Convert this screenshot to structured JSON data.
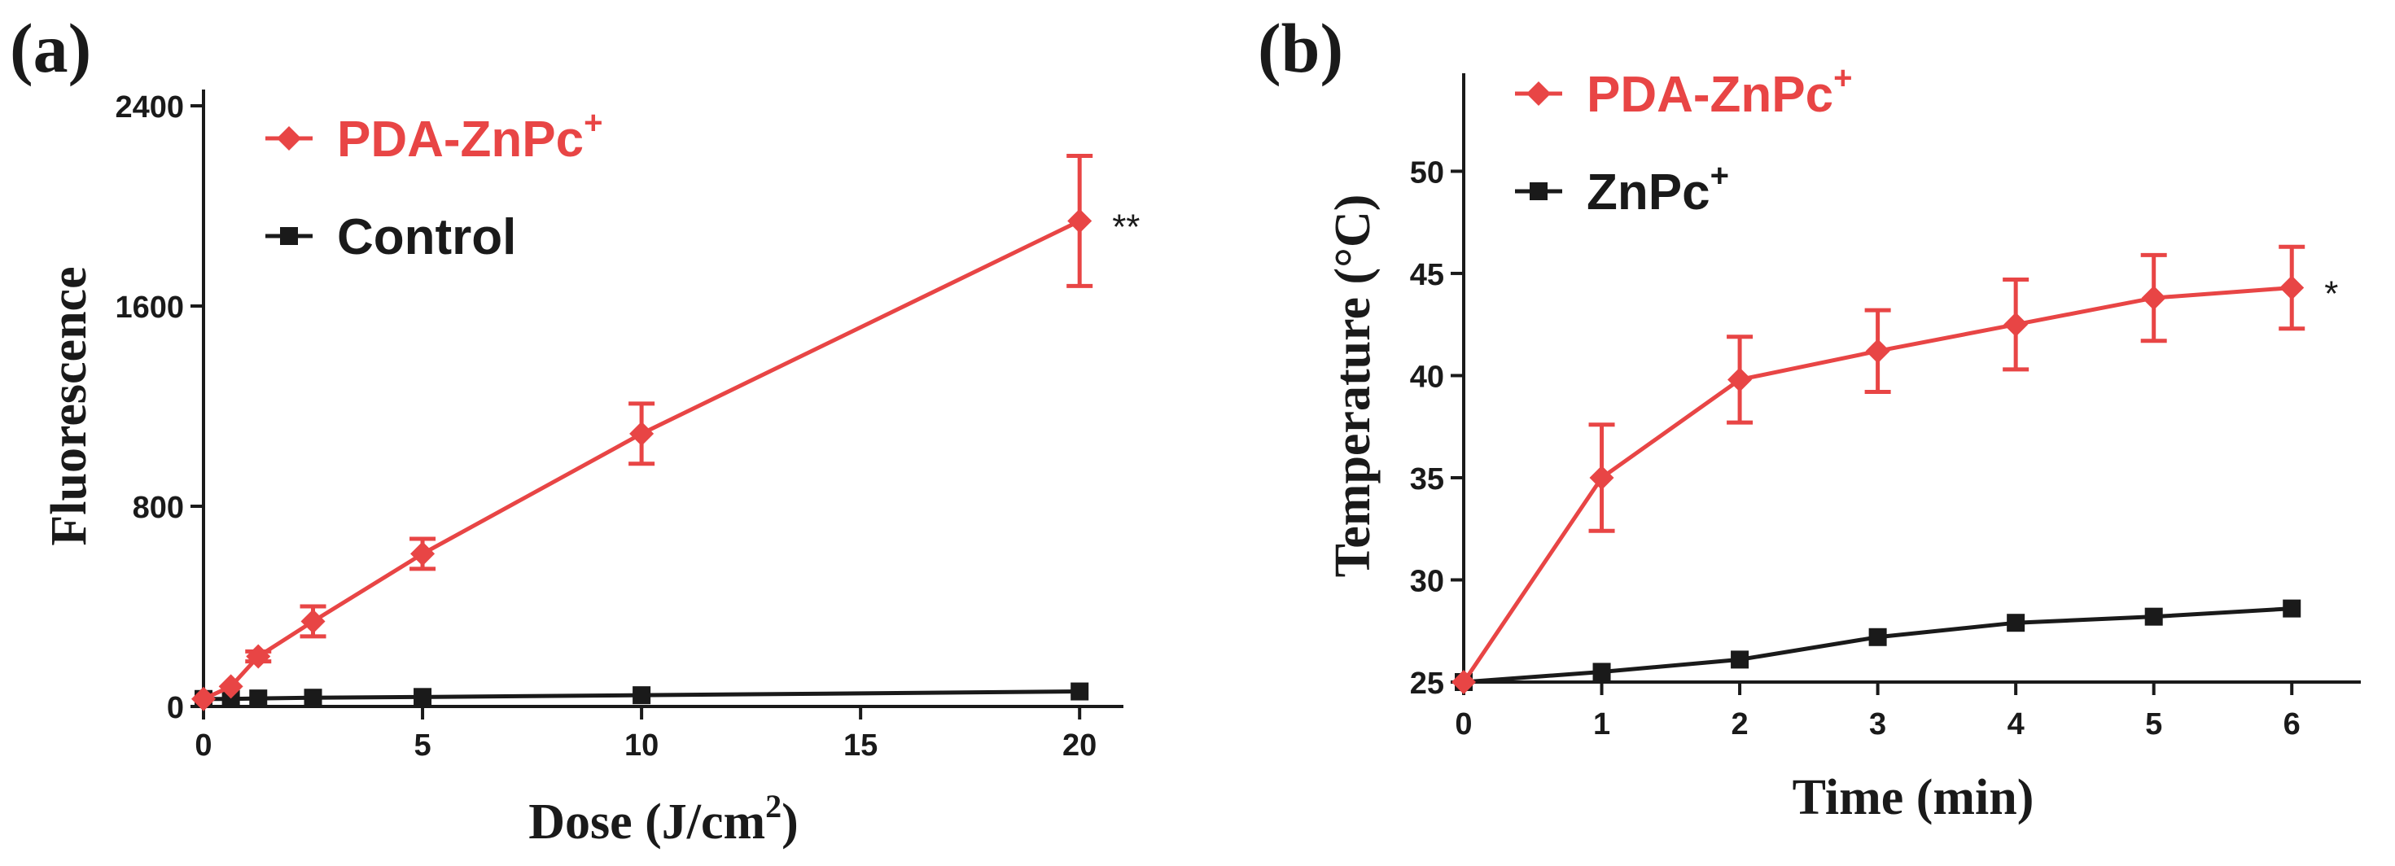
{
  "chart_data": [
    {
      "panel_label": "(a)",
      "type": "line",
      "xlabel": "Dose (J/cm",
      "xlabel_sup": "2",
      "xlabel_close": ")",
      "ylabel": "Fluorescence",
      "xlim": [
        0,
        21
      ],
      "ylim": [
        0,
        2400
      ],
      "xticks": [
        0,
        5,
        10,
        15,
        20
      ],
      "yticks": [
        0,
        800,
        1600,
        2400
      ],
      "legend_position": "top-left",
      "series": [
        {
          "name": "PDA-ZnPc",
          "name_sup": "+",
          "color": "#e84545",
          "marker": "diamond",
          "x": [
            0,
            0.625,
            1.25,
            2.5,
            5,
            10,
            20
          ],
          "y": [
            30,
            80,
            200,
            340,
            610,
            1090,
            1940
          ],
          "err": [
            0,
            0,
            20,
            60,
            60,
            120,
            260
          ]
        },
        {
          "name": "Control",
          "name_sup": "",
          "color": "#1a1a1a",
          "marker": "square",
          "x": [
            0,
            0.625,
            1.25,
            2.5,
            5,
            10,
            20
          ],
          "y": [
            30,
            30,
            32,
            35,
            38,
            45,
            60
          ],
          "err": [
            0,
            0,
            0,
            0,
            0,
            0,
            0
          ]
        }
      ],
      "annotation": {
        "text": "**",
        "x": 20,
        "y": 1940
      }
    },
    {
      "panel_label": "(b)",
      "type": "line",
      "xlabel": "Time (min)",
      "xlabel_sup": "",
      "xlabel_close": "",
      "ylabel": "Temperature (°C)",
      "xlim": [
        0,
        6.5
      ],
      "ylim": [
        25,
        54
      ],
      "xticks": [
        0,
        1,
        2,
        3,
        4,
        5,
        6
      ],
      "yticks": [
        25,
        30,
        35,
        40,
        45,
        50
      ],
      "legend_position": "top-left",
      "series": [
        {
          "name": "PDA-ZnPc",
          "name_sup": "+",
          "color": "#e84545",
          "marker": "diamond",
          "x": [
            0,
            1,
            2,
            3,
            4,
            5,
            6
          ],
          "y": [
            25.0,
            35.0,
            39.8,
            41.2,
            42.5,
            43.8,
            44.3
          ],
          "err": [
            0,
            2.6,
            2.1,
            2.0,
            2.2,
            2.1,
            2.0
          ]
        },
        {
          "name": "ZnPc",
          "name_sup": "+",
          "color": "#1a1a1a",
          "marker": "square",
          "x": [
            0,
            1,
            2,
            3,
            4,
            5,
            6
          ],
          "y": [
            25.0,
            25.5,
            26.1,
            27.2,
            27.9,
            28.2,
            28.6
          ],
          "err": [
            0,
            0,
            0,
            0,
            0,
            0,
            0
          ]
        }
      ],
      "annotation": {
        "text": "*",
        "x": 6,
        "y": 44.3
      }
    }
  ]
}
